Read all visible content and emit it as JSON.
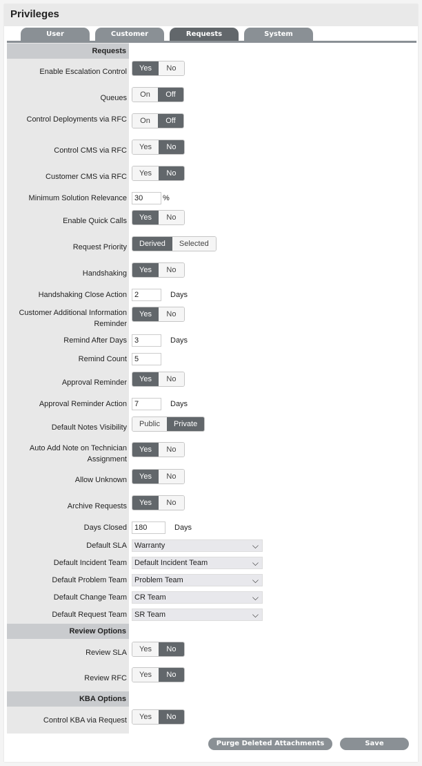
{
  "title": "Privileges",
  "tabs": [
    {
      "label": "User",
      "active": false
    },
    {
      "label": "Customer",
      "active": false
    },
    {
      "label": "Requests",
      "active": true
    },
    {
      "label": "System",
      "active": false
    }
  ],
  "sections": [
    {
      "header": "Requests",
      "rows": [
        {
          "label": "Enable Escalation Control",
          "type": "toggle",
          "options": [
            "Yes",
            "No"
          ],
          "selected": "Yes"
        },
        {
          "label": "Queues",
          "type": "toggle",
          "options": [
            "On",
            "Off"
          ],
          "selected": "Off"
        },
        {
          "label": "Control Deployments via RFC",
          "type": "toggle",
          "options": [
            "On",
            "Off"
          ],
          "selected": "Off"
        },
        {
          "label": "Control CMS via RFC",
          "type": "toggle",
          "options": [
            "Yes",
            "No"
          ],
          "selected": "No"
        },
        {
          "label": "Customer CMS via RFC",
          "type": "toggle",
          "options": [
            "Yes",
            "No"
          ],
          "selected": "No"
        },
        {
          "label": "Minimum Solution Relevance",
          "type": "input",
          "value": "30",
          "unit": "%"
        },
        {
          "label": "Enable Quick Calls",
          "type": "toggle",
          "options": [
            "Yes",
            "No"
          ],
          "selected": "Yes"
        },
        {
          "label": "Request Priority",
          "type": "toggle",
          "options": [
            "Derived",
            "Selected"
          ],
          "selected": "Derived"
        },
        {
          "label": "Handshaking",
          "type": "toggle",
          "options": [
            "Yes",
            "No"
          ],
          "selected": "Yes"
        },
        {
          "label": "Handshaking Close Action",
          "type": "input",
          "value": "2",
          "unit": "Days"
        },
        {
          "label": "Customer Additional Information Reminder",
          "type": "toggle",
          "options": [
            "Yes",
            "No"
          ],
          "selected": "Yes"
        },
        {
          "label": "Remind After Days",
          "type": "input",
          "value": "3",
          "unit": "Days"
        },
        {
          "label": "Remind Count",
          "type": "input",
          "value": "5",
          "unit": ""
        },
        {
          "label": "Approval Reminder",
          "type": "toggle",
          "options": [
            "Yes",
            "No"
          ],
          "selected": "Yes"
        },
        {
          "label": "Approval Reminder Action",
          "type": "input",
          "value": "7",
          "unit": "Days"
        },
        {
          "label": "Default Notes Visibility",
          "type": "toggle",
          "options": [
            "Public",
            "Private"
          ],
          "selected": "Private"
        },
        {
          "label": "Auto Add Note on Technician Assignment",
          "type": "toggle",
          "options": [
            "Yes",
            "No"
          ],
          "selected": "Yes"
        },
        {
          "label": "Allow Unknown",
          "type": "toggle",
          "options": [
            "Yes",
            "No"
          ],
          "selected": "Yes"
        },
        {
          "label": "Archive Requests",
          "type": "toggle",
          "options": [
            "Yes",
            "No"
          ],
          "selected": "Yes"
        },
        {
          "label": "Days Closed",
          "type": "input",
          "value": "180",
          "unit": "Days"
        },
        {
          "label": "Default SLA",
          "type": "select",
          "value": "Warranty"
        },
        {
          "label": "Default Incident Team",
          "type": "select",
          "value": "Default Incident Team"
        },
        {
          "label": "Default Problem Team",
          "type": "select",
          "value": "Problem Team"
        },
        {
          "label": "Default Change Team",
          "type": "select",
          "value": "CR Team"
        },
        {
          "label": "Default Request Team",
          "type": "select",
          "value": "SR Team"
        }
      ]
    },
    {
      "header": "Review Options",
      "rows": [
        {
          "label": "Review SLA",
          "type": "toggle",
          "options": [
            "Yes",
            "No"
          ],
          "selected": "No"
        },
        {
          "label": "Review RFC",
          "type": "toggle",
          "options": [
            "Yes",
            "No"
          ],
          "selected": "No"
        }
      ]
    },
    {
      "header": "KBA Options",
      "rows": [
        {
          "label": "Control KBA via Request",
          "type": "toggle",
          "options": [
            "Yes",
            "No"
          ],
          "selected": "No"
        }
      ]
    }
  ],
  "buttons": {
    "purge": "Purge Deleted Attachments",
    "save": "Save"
  },
  "colors": {
    "selected": "#62676b",
    "tab": "#8a9095",
    "section_header": "#c9cbce"
  }
}
